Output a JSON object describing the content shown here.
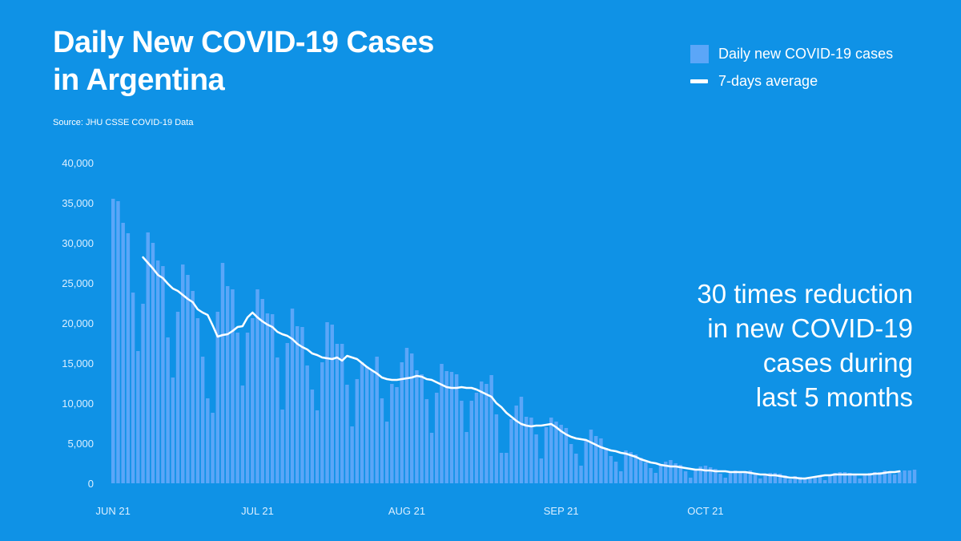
{
  "title_lines": [
    "Daily New COVID-19 Cases",
    "in Argentina"
  ],
  "source": "Source: JHU CSSE COVID-19 Data",
  "legend": {
    "bars_label": "Daily new COVID-19 cases",
    "line_label": "7-days average"
  },
  "callout_lines": [
    "30 times reduction",
    "in new COVID-19",
    "cases during",
    "last 5 months"
  ],
  "colors": {
    "background": "#0f92e6",
    "bars": "#5ba6f8",
    "line": "#ffffff"
  },
  "chart_data": {
    "type": "bar",
    "title": "Daily New COVID-19 Cases in Argentina",
    "ylim": [
      0,
      40000
    ],
    "yticks": [
      0,
      5000,
      10000,
      15000,
      20000,
      25000,
      30000,
      35000,
      40000
    ],
    "ytick_labels": [
      "0",
      "5,000",
      "10,000",
      "15,000",
      "20,000",
      "25,000",
      "30,000",
      "35,000",
      "40,000"
    ],
    "xtick_labels": [
      "JUN 21",
      "JUL 21",
      "AUG 21",
      "SEP 21",
      "OCT 21"
    ],
    "xtick_day_index": [
      0,
      29,
      59,
      90,
      119
    ],
    "series": [
      {
        "name": "Daily new COVID-19 cases",
        "kind": "bar",
        "values": [
          35500,
          35200,
          32500,
          31200,
          23800,
          16500,
          22400,
          31300,
          30000,
          27800,
          27100,
          18200,
          13200,
          21400,
          27300,
          26000,
          24000,
          20600,
          15800,
          10600,
          8800,
          21400,
          27500,
          24600,
          24200,
          18800,
          12200,
          18800,
          20600,
          24200,
          23000,
          21200,
          21100,
          15700,
          9200,
          17500,
          21800,
          19600,
          19500,
          14700,
          11700,
          9100,
          15100,
          20100,
          19800,
          17400,
          17400,
          12300,
          7100,
          13000,
          15100,
          14600,
          14100,
          15800,
          10600,
          7700,
          12400,
          12000,
          15100,
          16900,
          16200,
          14100,
          13600,
          10500,
          6300,
          11300,
          14900,
          14000,
          13900,
          13600,
          10300,
          6400,
          10300,
          11300,
          12700,
          12400,
          13500,
          8600,
          3800,
          3800,
          8000,
          9700,
          10800,
          8300,
          8200,
          6100,
          3100,
          7000,
          8200,
          7700,
          7300,
          6900,
          4900,
          3700,
          2200,
          5400,
          6700,
          5900,
          5600,
          4400,
          3400,
          2700,
          1500,
          4100,
          3900,
          3600,
          3200,
          2600,
          1900,
          1300,
          2400,
          2700,
          2900,
          2500,
          2300,
          1500,
          700,
          1800,
          2100,
          2200,
          2000,
          1800,
          1200,
          700,
          1400,
          1600,
          1500,
          1500,
          1600,
          1300,
          600,
          1200,
          1300,
          1300,
          1200,
          1000,
          500,
          900,
          800,
          700,
          800,
          900,
          800,
          400,
          1000,
          1300,
          1400,
          1400,
          1300,
          1100,
          600,
          1200,
          1300,
          1400,
          1400,
          1600,
          1400,
          1100,
          1400,
          1600,
          1600,
          1700
        ]
      },
      {
        "name": "7-days average",
        "kind": "line",
        "start_day_index": 6,
        "values": [
          28200,
          27500,
          26800,
          26000,
          25600,
          24900,
          24300,
          24000,
          23500,
          23000,
          22600,
          21700,
          21300,
          21000,
          19700,
          18300,
          18500,
          18600,
          19000,
          19500,
          19600,
          20700,
          21300,
          20700,
          20200,
          19800,
          19500,
          18900,
          18600,
          18400,
          18000,
          17400,
          17000,
          16700,
          16200,
          16000,
          15700,
          15600,
          15500,
          15700,
          15300,
          15900,
          15700,
          15500,
          15000,
          14500,
          14100,
          13700,
          13200,
          13000,
          12900,
          12900,
          13000,
          13100,
          13200,
          13400,
          13300,
          13000,
          12900,
          12600,
          12300,
          12000,
          11900,
          11900,
          12000,
          11900,
          11900,
          11700,
          11400,
          11100,
          10800,
          10000,
          9500,
          8800,
          8300,
          7800,
          7400,
          7200,
          7100,
          7200,
          7200,
          7300,
          7400,
          7000,
          6500,
          6100,
          5800,
          5600,
          5500,
          5400,
          5100,
          4800,
          4500,
          4300,
          4100,
          4000,
          3800,
          3700,
          3500,
          3300,
          3000,
          2800,
          2600,
          2500,
          2300,
          2200,
          2100,
          2100,
          2000,
          1900,
          1800,
          1700,
          1700,
          1600,
          1600,
          1500,
          1500,
          1500,
          1400,
          1400,
          1400,
          1400,
          1300,
          1200,
          1100,
          1100,
          1000,
          1000,
          900,
          800,
          700,
          700,
          600,
          600,
          700,
          800,
          900,
          1000,
          1000,
          1100,
          1100,
          1100,
          1100,
          1100,
          1100,
          1100,
          1100,
          1200,
          1200,
          1300,
          1400,
          1400,
          1500
        ]
      }
    ]
  }
}
